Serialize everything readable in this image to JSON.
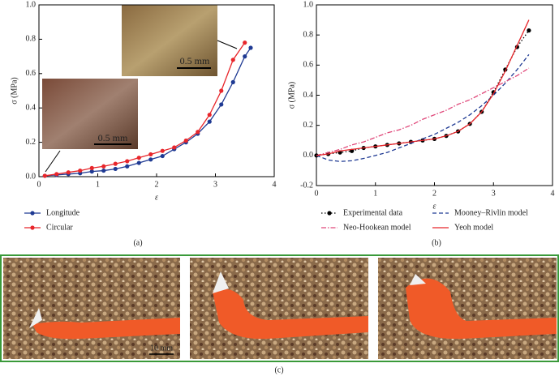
{
  "chart_data": [
    {
      "type": "line",
      "x_label": "ε",
      "y_label": "σ (MPa)",
      "x": [
        0.1,
        0.3,
        0.5,
        0.7,
        0.9,
        1.1,
        1.3,
        1.5,
        1.7,
        1.9,
        2.1,
        2.3,
        2.5,
        2.7,
        2.9,
        3.1,
        3.3,
        3.5,
        3.6
      ],
      "series": [
        {
          "name": "Longitude",
          "color": "#1f3a93",
          "linestyle": "solid",
          "marker": "circle",
          "values": [
            0.005,
            0.01,
            0.015,
            0.02,
            0.03,
            0.035,
            0.045,
            0.06,
            0.08,
            0.1,
            0.12,
            0.16,
            0.2,
            0.25,
            0.32,
            0.42,
            0.55,
            0.7,
            0.75
          ]
        },
        {
          "name": "Circular",
          "color": "#e8262b",
          "linestyle": "solid",
          "marker": "circle",
          "values": [
            0.005,
            0.015,
            0.025,
            0.035,
            0.05,
            0.06,
            0.075,
            0.09,
            0.11,
            0.13,
            0.15,
            0.17,
            0.21,
            0.26,
            0.36,
            0.5,
            0.68,
            0.78,
            null
          ]
        }
      ],
      "xlim": [
        0,
        4
      ],
      "xticks": [
        0,
        1,
        2,
        3,
        4
      ],
      "ylim": [
        0,
        1
      ],
      "yticks": [
        {
          "value": 0,
          "label": "0.0"
        },
        0.2,
        0.4,
        0.6,
        0.8,
        {
          "value": 1,
          "label": "1.0"
        }
      ],
      "annotations": [
        "0.5 mm",
        "0.5 mm"
      ],
      "panel": "(a)"
    },
    {
      "type": "line",
      "x_label": "ε",
      "y_label": "σ (MPa)",
      "x": [
        0,
        0.2,
        0.4,
        0.6,
        0.8,
        1,
        1.2,
        1.4,
        1.6,
        1.8,
        2,
        2.2,
        2.4,
        2.6,
        2.8,
        3,
        3.2,
        3.4,
        3.6
      ],
      "series": [
        {
          "name": "Experimental data",
          "color": "#000000",
          "linestyle": "dotted",
          "marker": "circle",
          "values": [
            0,
            0.01,
            0.02,
            0.03,
            0.05,
            0.06,
            0.07,
            0.08,
            0.09,
            0.1,
            0.11,
            0.13,
            0.16,
            0.21,
            0.29,
            0.42,
            0.57,
            0.72,
            0.83
          ]
        },
        {
          "name": "Mooney–Rivlin model",
          "color": "#1f3a93",
          "linestyle": "dashed",
          "marker": "none",
          "values": [
            0,
            -0.03,
            -0.04,
            -0.035,
            -0.02,
            0,
            0.02,
            0.05,
            0.08,
            0.11,
            0.14,
            0.18,
            0.22,
            0.27,
            0.33,
            0.4,
            0.48,
            0.57,
            0.67
          ]
        },
        {
          "name": "Neo-Hookean model",
          "color": "#e0487a",
          "linestyle": "dashdot",
          "marker": "none",
          "values": [
            0,
            0.02,
            0.04,
            0.07,
            0.09,
            0.12,
            0.15,
            0.17,
            0.2,
            0.24,
            0.27,
            0.3,
            0.34,
            0.37,
            0.41,
            0.45,
            0.49,
            0.53,
            0.58
          ]
        },
        {
          "name": "Yeoh model",
          "color": "#e8262b",
          "linestyle": "solid",
          "marker": "none",
          "values": [
            0,
            0.01,
            0.03,
            0.04,
            0.05,
            0.06,
            0.07,
            0.08,
            0.09,
            0.1,
            0.11,
            0.13,
            0.16,
            0.21,
            0.29,
            0.41,
            0.56,
            0.73,
            0.9
          ]
        }
      ],
      "xlim": [
        0,
        4
      ],
      "xticks": [
        0,
        1,
        2,
        3,
        4
      ],
      "ylim": [
        -0.2,
        1
      ],
      "yticks": [
        -0.2,
        {
          "value": 0,
          "label": "0.0"
        },
        0.2,
        0.4,
        0.6,
        0.8,
        {
          "value": 1,
          "label": "1.0"
        }
      ],
      "panel": "(b)"
    }
  ],
  "photos": {
    "scale_bar": "10 mm",
    "panel": "(c)"
  }
}
